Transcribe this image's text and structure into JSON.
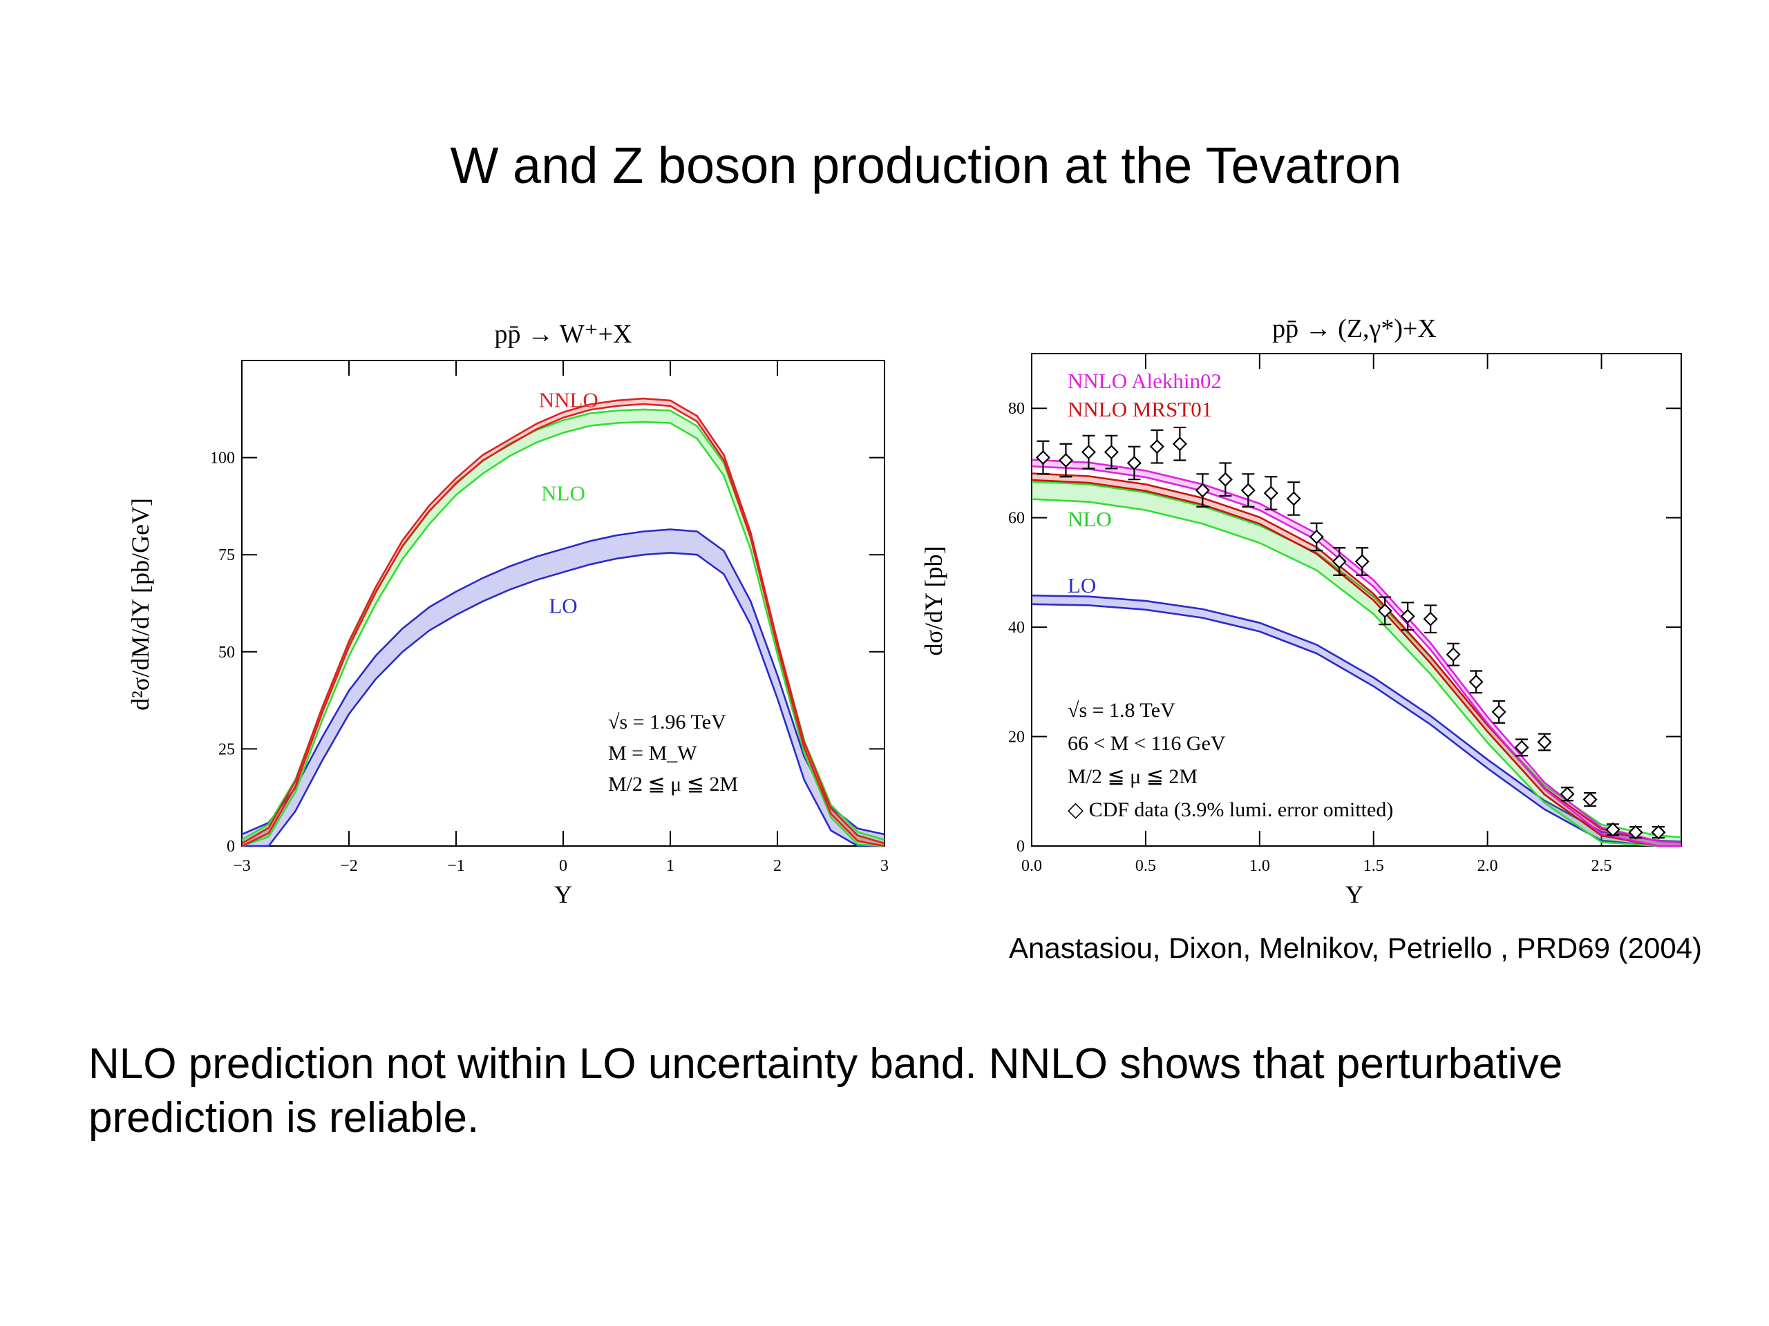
{
  "slide": {
    "title": "W and Z boson production at the Tevatron",
    "citation": "Anastasiou,  Dixon, Melnikov, Petriello , PRD69 (2004)",
    "caption": "NLO prediction not within LO uncertainty band. NNLO shows that perturbative prediction is reliable."
  },
  "chart_data": [
    {
      "type": "line",
      "title": "pp̄ → W⁺+X",
      "xlabel": "Y",
      "ylabel": "d²σ/dM/dY [pb/GeV]",
      "xlim": [
        -3,
        3
      ],
      "ylim": [
        0,
        125
      ],
      "x_ticks": [
        -3,
        -2,
        -1,
        0,
        1,
        2,
        3
      ],
      "x_tick_labels": [
        "−3",
        "−2",
        "−1",
        "0",
        "1",
        "2",
        "3"
      ],
      "y_ticks": [
        0,
        25,
        50,
        75,
        100
      ],
      "y_tick_labels": [
        "0",
        "25",
        "50",
        "75",
        "100"
      ],
      "grid": false,
      "annotations": [
        "√s  =  1.96  TeV",
        "M  =  M_W",
        "M/2  ≦  μ  ≦  2M"
      ],
      "colors": {
        "NNLO": "#e02020",
        "NLO": "#33dd33",
        "LO": "#2a2acc"
      },
      "x": [
        -3,
        -2.75,
        -2.5,
        -2.25,
        -2,
        -1.75,
        -1.5,
        -1.25,
        -1,
        -0.75,
        -0.5,
        -0.25,
        0,
        0.25,
        0.5,
        0.75,
        1,
        1.25,
        1.5,
        1.75,
        2,
        2.25,
        2.5,
        2.75,
        3
      ],
      "series": [
        {
          "name": "NNLO",
          "label_at": [
            0.05,
            113
          ],
          "values": [
            0,
            4,
            16,
            35,
            52,
            66,
            78,
            87,
            94,
            100,
            104,
            108,
            111,
            113,
            114,
            114.5,
            114,
            110,
            100,
            80,
            52,
            26,
            9,
            2,
            0
          ],
          "band": 0.7
        },
        {
          "name": "NLO",
          "label_at": [
            0.0,
            89
          ],
          "values": [
            0,
            4,
            15.5,
            34,
            50.5,
            64,
            75.5,
            84.5,
            92,
            97.5,
            102,
            105.5,
            108,
            109.8,
            110.5,
            110.8,
            110.5,
            106.5,
            97,
            78,
            51,
            25.5,
            9,
            2,
            0
          ],
          "band": 1.6
        },
        {
          "name": "LO",
          "label_at": [
            0.0,
            60
          ],
          "values": [
            0,
            3,
            12,
            25,
            37,
            46,
            53,
            58.5,
            62.5,
            66,
            69,
            71.5,
            73.5,
            75.5,
            77,
            78,
            78.5,
            78,
            73,
            60,
            41,
            20,
            7,
            1.5,
            0
          ],
          "band": 3
        }
      ]
    },
    {
      "type": "line",
      "title": "pp̄ → (Z,γ*)+X",
      "xlabel": "Y",
      "ylabel": "dσ/dY [pb]",
      "xlim": [
        0,
        2.85
      ],
      "ylim": [
        0,
        90
      ],
      "x_ticks": [
        0,
        0.5,
        1.0,
        1.5,
        2.0,
        2.5
      ],
      "x_tick_labels": [
        "0.0",
        "0.5",
        "1.0",
        "1.5",
        "2.0",
        "2.5"
      ],
      "y_ticks": [
        0,
        20,
        40,
        60,
        80
      ],
      "y_tick_labels": [
        "0",
        "20",
        "40",
        "60",
        "80"
      ],
      "grid": false,
      "annotations": [
        "√s  =  1.8  TeV",
        "66  <  M  <  116  GeV",
        "M/2  ≦  μ  ≦  2M",
        "◇  CDF  data  (3.9%  lumi.  error  omitted)"
      ],
      "colors": {
        "NNLO Alekhin02": "#e020e0",
        "NNLO MRST01": "#cc1111",
        "NLO": "#33dd33",
        "LO": "#2a2acc",
        "CDF data": "#000000"
      },
      "x": [
        0,
        0.25,
        0.5,
        0.75,
        1.0,
        1.25,
        1.5,
        1.75,
        2.0,
        2.25,
        2.5,
        2.75,
        2.85
      ],
      "series": [
        {
          "name": "NNLO Alekhin02",
          "values": [
            70,
            69.5,
            68,
            65.5,
            62,
            56.5,
            48,
            36.5,
            23,
            11,
            2.8,
            0.3,
            0
          ],
          "band": 0.6
        },
        {
          "name": "NNLO MRST01",
          "values": [
            67.5,
            67,
            65.5,
            63,
            59.5,
            54,
            45.5,
            34,
            21.5,
            10,
            2.5,
            0.3,
            0
          ],
          "band": 0.6
        },
        {
          "name": "NLO",
          "values": [
            65,
            64.5,
            63,
            60.5,
            57,
            52,
            44,
            33,
            20.5,
            9.5,
            2.3,
            0.3,
            0
          ],
          "band": 1.6
        },
        {
          "name": "LO",
          "values": [
            45,
            44.8,
            44,
            42.5,
            40,
            36,
            30,
            23,
            15,
            7.5,
            1.8,
            0.2,
            0
          ],
          "band": 0.8
        }
      ],
      "data_points": {
        "name": "CDF data",
        "x": [
          0.05,
          0.15,
          0.25,
          0.35,
          0.45,
          0.55,
          0.65,
          0.75,
          0.85,
          0.95,
          1.05,
          1.15,
          1.25,
          1.35,
          1.45,
          1.55,
          1.65,
          1.75,
          1.85,
          1.95,
          2.05,
          2.15,
          2.25,
          2.35,
          2.45,
          2.55,
          2.65,
          2.75
        ],
        "y": [
          71,
          70.5,
          72,
          72,
          70,
          73,
          73.5,
          65,
          67,
          65,
          64.5,
          63.5,
          56.5,
          52,
          52,
          43,
          42,
          41.5,
          35,
          30,
          24.5,
          18,
          19,
          9.5,
          8.5,
          3,
          2.5,
          2.5
        ],
        "err": [
          3,
          3,
          3,
          3,
          3,
          3,
          3,
          3,
          3,
          3,
          3,
          3,
          2.5,
          2.5,
          2.5,
          2.5,
          2.5,
          2.5,
          2,
          2,
          2,
          1.5,
          1.5,
          1.2,
          1.2,
          1,
          1,
          1
        ]
      }
    }
  ]
}
